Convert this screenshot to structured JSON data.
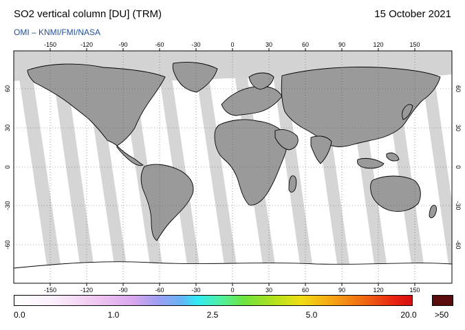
{
  "header": {
    "title": "SO2 vertical column [DU] (TRM)",
    "date": "15 October 2021",
    "credit": "OMI  –  KNMI/FMI/NASA"
  },
  "map": {
    "projection": "equirectangular",
    "lon_ticks": [
      "-150",
      "-120",
      "-90",
      "-60",
      "-30",
      "0",
      "30",
      "60",
      "90",
      "120",
      "150"
    ],
    "lat_ticks": [
      "60",
      "30",
      "0",
      "-30",
      "-60"
    ],
    "colors": {
      "land": "#9a9a9a",
      "no_data": "#d3d3d3",
      "orbit_gap_dark": "#a9a9a9",
      "ocean_valid": "#ffffff",
      "grid": "#555555"
    }
  },
  "colorbar": {
    "labels": [
      "0.0",
      "1.0",
      "2.5",
      "5.0",
      "20.0"
    ],
    "overflow_label": ">50",
    "colors": [
      "#ffffff",
      "#f1c9f1",
      "#9f9ef2",
      "#30eaf4",
      "#6fe33a",
      "#f0dd14",
      "#f06812",
      "#d40f0f"
    ],
    "overflow_color": "#5a0c0c"
  }
}
